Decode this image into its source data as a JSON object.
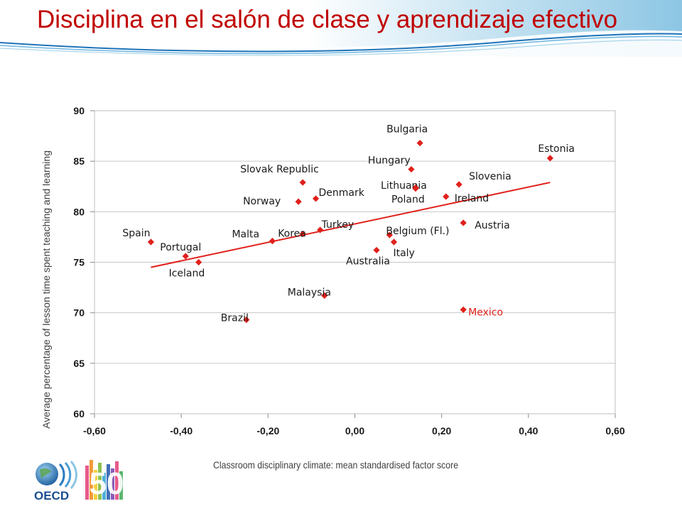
{
  "page": {
    "title": "Disciplina en el salón de clase y aprendizaje efectivo",
    "logos": [
      "OECD",
      "50"
    ]
  },
  "colors": {
    "title": "#c00000",
    "marker": "#e0201b",
    "trendline": "#e0201b",
    "highlight_label": "#e0201b",
    "grid": "#c8c8c8",
    "header_wave": "#a9d5ea"
  },
  "chart_data": {
    "type": "scatter",
    "title": "",
    "xlabel": "Classroom disciplinary climate: mean standardised factor score",
    "ylabel": "Average percentage of lesson time spent teaching and learning",
    "xlim": [
      -0.6,
      0.6
    ],
    "ylim": [
      60,
      90
    ],
    "xticks": [
      "-0,60",
      "-0,40",
      "-0,20",
      "0,00",
      "0,20",
      "0,40",
      "0,60"
    ],
    "yticks": [
      "60",
      "65",
      "70",
      "75",
      "80",
      "85",
      "90"
    ],
    "grid": "horizontal",
    "legend": "none",
    "points": [
      {
        "name": "Spain",
        "x": -0.47,
        "y": 77.0
      },
      {
        "name": "Portugal",
        "x": -0.39,
        "y": 75.6
      },
      {
        "name": "Iceland",
        "x": -0.36,
        "y": 75.0
      },
      {
        "name": "Brazil",
        "x": -0.25,
        "y": 69.3
      },
      {
        "name": "Malta",
        "x": -0.19,
        "y": 77.1
      },
      {
        "name": "Slovak Republic",
        "x": -0.12,
        "y": 82.9
      },
      {
        "name": "Norway",
        "x": -0.13,
        "y": 81.0
      },
      {
        "name": "Korea",
        "x": -0.12,
        "y": 77.8
      },
      {
        "name": "Denmark",
        "x": -0.09,
        "y": 81.3
      },
      {
        "name": "Turkey",
        "x": -0.08,
        "y": 78.2
      },
      {
        "name": "Malaysia",
        "x": -0.07,
        "y": 71.7
      },
      {
        "name": "Australia",
        "x": 0.05,
        "y": 76.2
      },
      {
        "name": "Belgium (Fl.)",
        "x": 0.08,
        "y": 77.7
      },
      {
        "name": "Italy",
        "x": 0.09,
        "y": 77.0
      },
      {
        "name": "Hungary",
        "x": 0.13,
        "y": 84.2
      },
      {
        "name": "Lithuania",
        "x": 0.14,
        "y": 82.4
      },
      {
        "name": "Poland",
        "x": 0.14,
        "y": 82.3
      },
      {
        "name": "Bulgaria",
        "x": 0.15,
        "y": 86.8
      },
      {
        "name": "Ireland",
        "x": 0.21,
        "y": 81.5
      },
      {
        "name": "Slovenia",
        "x": 0.24,
        "y": 82.7
      },
      {
        "name": "Austria",
        "x": 0.25,
        "y": 78.9
      },
      {
        "name": "Mexico",
        "x": 0.25,
        "y": 70.3,
        "highlight": true
      },
      {
        "name": "Estonia",
        "x": 0.45,
        "y": 85.3
      }
    ],
    "trendline": {
      "x": [
        -0.47,
        0.45
      ],
      "y": [
        74.5,
        82.9
      ]
    }
  }
}
